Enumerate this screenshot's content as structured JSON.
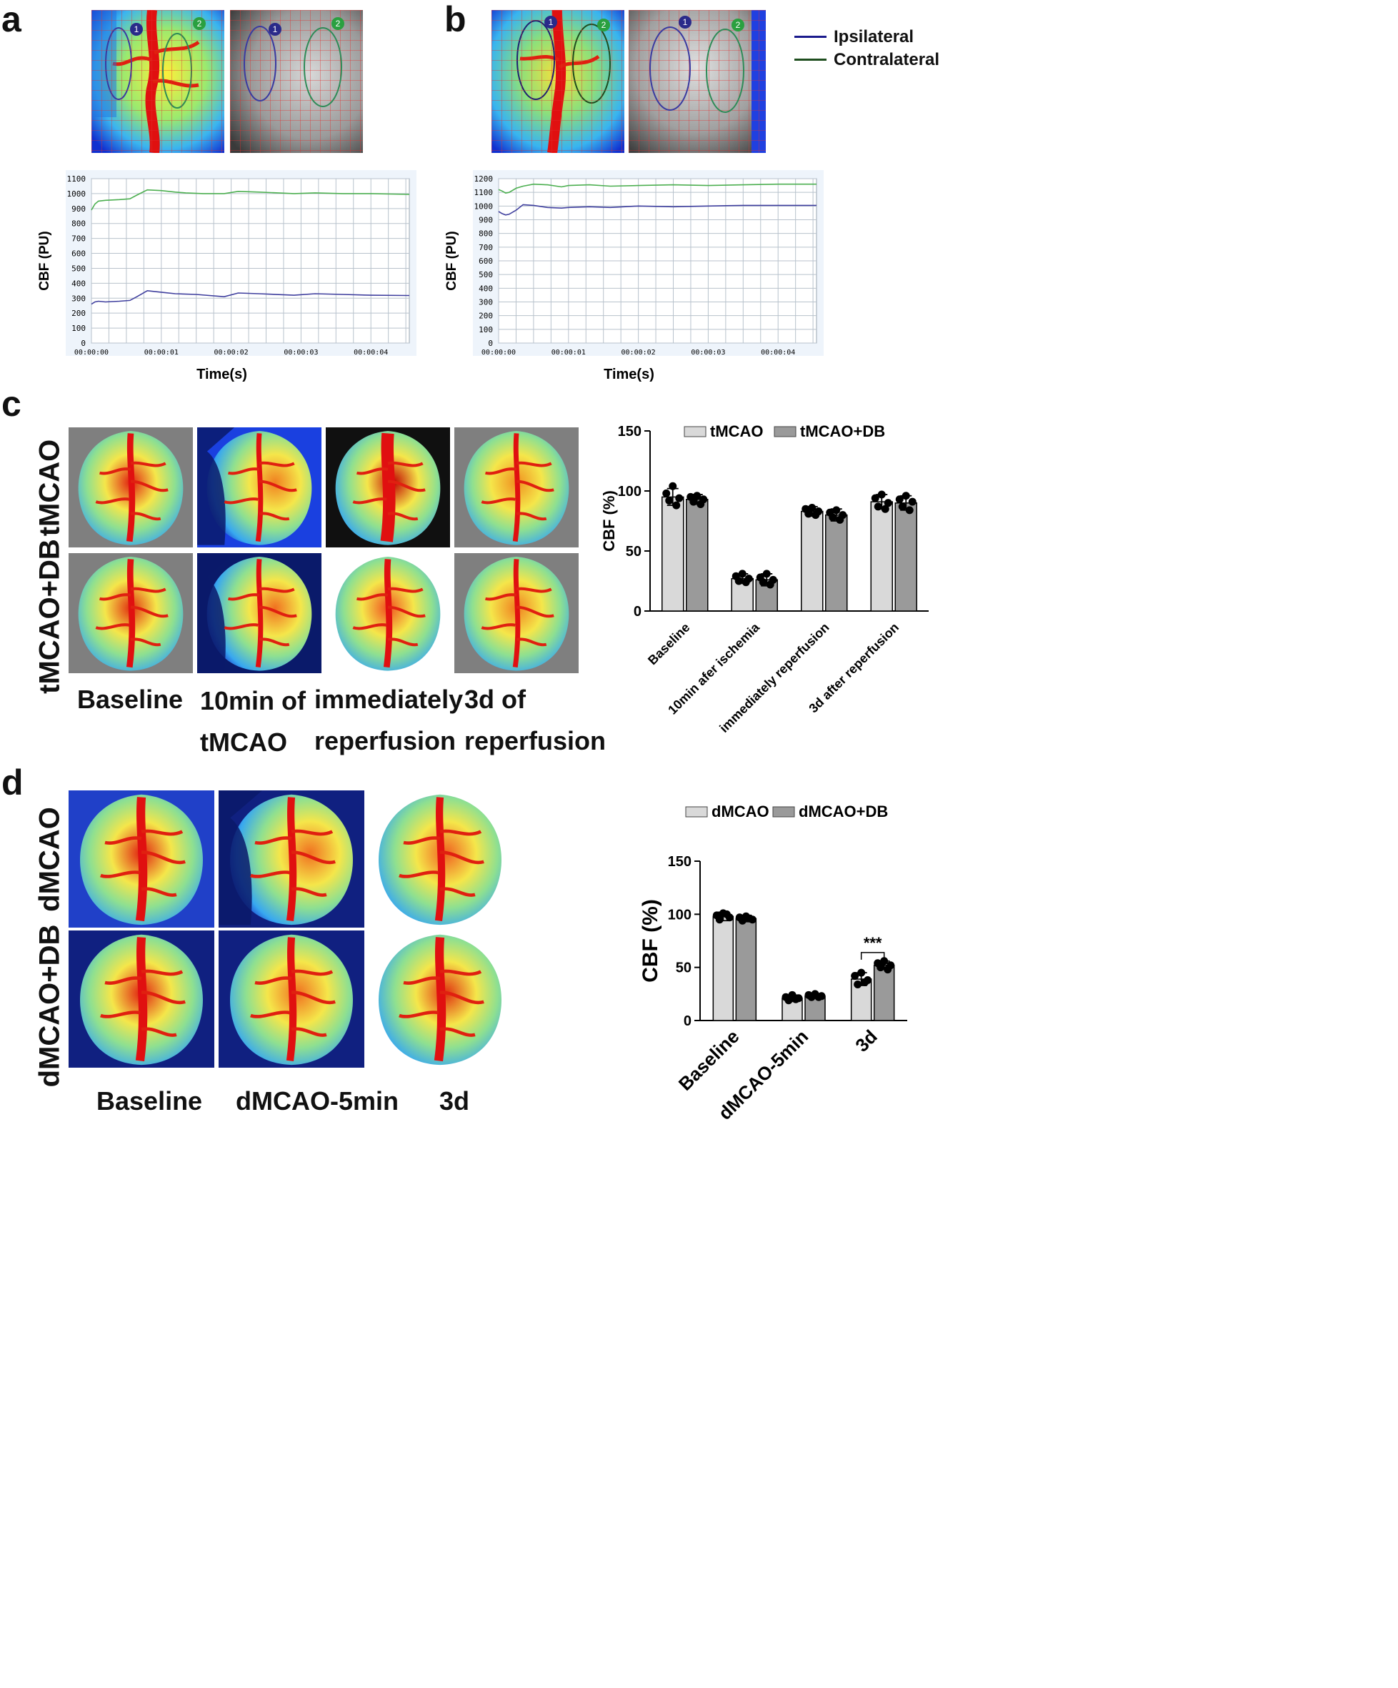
{
  "panels": {
    "a": "a",
    "b": "b",
    "c": "c",
    "d": "d"
  },
  "legend_ab": {
    "items": [
      {
        "label": "Ipsilateral",
        "color": "#1a1a8c"
      },
      {
        "label": "Contralateral",
        "color": "#1e4d1e"
      }
    ]
  },
  "roi_markers": [
    "1",
    "2"
  ],
  "row_labels_c": [
    "tMCAO",
    "tMCAO+DB"
  ],
  "col_labels_c": [
    [
      "Baseline"
    ],
    [
      "10min of",
      "tMCAO"
    ],
    [
      "immediately",
      "reperfusion"
    ],
    [
      "3d of",
      "reperfusion"
    ]
  ],
  "row_labels_d": [
    "dMCAO",
    "dMCAO+DB"
  ],
  "col_labels_d": [
    "Baseline",
    "dMCAO-5min",
    "3d"
  ],
  "chart_data": [
    {
      "id": "a",
      "type": "line",
      "title": "",
      "xlabel": "Time(s)",
      "ylabel": "CBF (PU)",
      "xlim": [
        0,
        4.55
      ],
      "ylim": [
        0,
        1100
      ],
      "y_ticks": [
        0,
        100,
        200,
        300,
        400,
        500,
        600,
        700,
        800,
        900,
        1000,
        1100
      ],
      "x_ticks": [
        0,
        1,
        2,
        3,
        4
      ],
      "x_tick_labels": [
        "00:00:00",
        "00:00:01",
        "00:00:02",
        "00:00:03",
        "00:00:04"
      ],
      "grid": true,
      "series": [
        {
          "color": "#4caf50",
          "x": [
            0,
            0.05,
            0.1,
            0.2,
            0.4,
            0.55,
            0.65,
            0.8,
            1.0,
            1.2,
            1.35,
            1.6,
            1.9,
            2.1,
            2.4,
            2.9,
            3.2,
            3.6,
            4.0,
            4.55
          ],
          "y": [
            890,
            930,
            950,
            955,
            960,
            965,
            990,
            1025,
            1020,
            1010,
            1005,
            1000,
            1000,
            1015,
            1010,
            1000,
            1005,
            1000,
            1000,
            995
          ]
        },
        {
          "color": "#3f3f9e",
          "x": [
            0,
            0.05,
            0.1,
            0.2,
            0.4,
            0.55,
            0.65,
            0.8,
            1.0,
            1.2,
            1.5,
            1.9,
            2.1,
            2.4,
            2.9,
            3.2,
            3.6,
            4.0,
            4.55
          ],
          "y": [
            260,
            275,
            280,
            275,
            280,
            285,
            310,
            350,
            340,
            330,
            325,
            310,
            335,
            330,
            320,
            330,
            325,
            320,
            318
          ]
        }
      ]
    },
    {
      "id": "b",
      "type": "line",
      "title": "",
      "xlabel": "Time(s)",
      "ylabel": "CBF (PU)",
      "xlim": [
        0,
        4.55
      ],
      "ylim": [
        0,
        1200
      ],
      "y_ticks": [
        0,
        100,
        200,
        300,
        400,
        500,
        600,
        700,
        800,
        900,
        1000,
        1100,
        1200
      ],
      "x_ticks": [
        0,
        1,
        2,
        3,
        4
      ],
      "x_tick_labels": [
        "00:00:00",
        "00:00:01",
        "00:00:02",
        "00:00:03",
        "00:00:04"
      ],
      "grid": true,
      "series": [
        {
          "color": "#4caf50",
          "x": [
            0,
            0.05,
            0.1,
            0.15,
            0.25,
            0.35,
            0.5,
            0.7,
            0.9,
            1.0,
            1.3,
            1.6,
            2.0,
            2.5,
            3.0,
            3.5,
            4.0,
            4.55
          ],
          "y": [
            1120,
            1110,
            1095,
            1100,
            1130,
            1145,
            1160,
            1155,
            1140,
            1150,
            1155,
            1145,
            1150,
            1155,
            1150,
            1155,
            1160,
            1160
          ]
        },
        {
          "color": "#3f3f9e",
          "x": [
            0,
            0.05,
            0.1,
            0.15,
            0.25,
            0.35,
            0.5,
            0.7,
            0.9,
            1.0,
            1.3,
            1.6,
            2.0,
            2.5,
            3.0,
            3.5,
            4.0,
            4.55
          ],
          "y": [
            960,
            945,
            935,
            940,
            970,
            1010,
            1005,
            990,
            985,
            990,
            995,
            990,
            1000,
            995,
            1000,
            1005,
            1005,
            1005
          ]
        }
      ]
    },
    {
      "id": "c",
      "type": "bar",
      "title": "",
      "ylabel": "CBF (%)",
      "ylim": [
        0,
        150
      ],
      "y_ticks": [
        0,
        50,
        100,
        150
      ],
      "categories": [
        "Baseline",
        "10min afer ischemia",
        "immediately reperfusion",
        "3d after reperfusion"
      ],
      "series": [
        {
          "name": "tMCAO",
          "color": "#d9d9d9",
          "values": [
            95,
            27,
            83,
            91
          ],
          "errors": [
            7,
            4,
            4,
            6
          ],
          "points": [
            [
              104,
              98,
              94,
              92,
              88
            ],
            [
              31,
              29,
              27,
              25,
              24
            ],
            [
              86,
              85,
              83,
              81,
              80
            ],
            [
              97,
              94,
              90,
              87,
              85
            ]
          ]
        },
        {
          "name": "tMCAO+DB",
          "color": "#9a9a9a",
          "values": [
            93,
            26,
            80,
            90
          ],
          "errors": [
            4,
            5,
            5,
            6
          ],
          "points": [
            [
              96,
              95,
              93,
              91,
              89
            ],
            [
              31,
              28,
              26,
              24,
              22
            ],
            [
              84,
              82,
              80,
              78,
              76
            ],
            [
              96,
              93,
              91,
              87,
              84
            ]
          ]
        }
      ]
    },
    {
      "id": "d",
      "type": "bar",
      "title": "",
      "ylabel": "CBF (%)",
      "ylim": [
        0,
        150
      ],
      "y_ticks": [
        0,
        50,
        100,
        150
      ],
      "categories": [
        "Baseline",
        "dMCAO-5min",
        "3d"
      ],
      "annotations": [
        {
          "text": "***",
          "between": [
            2,
            0,
            1
          ]
        }
      ],
      "series": [
        {
          "name": "dMCAO",
          "color": "#d9d9d9",
          "values": [
            98,
            21,
            39
          ],
          "errors": [
            4,
            3,
            6
          ],
          "points": [
            [
              101,
              99,
              97,
              95,
              100
            ],
            [
              24,
              22,
              21,
              19,
              20
            ],
            [
              45,
              42,
              38,
              34,
              36
            ]
          ]
        },
        {
          "name": "dMCAO+DB",
          "color": "#9a9a9a",
          "values": [
            96,
            23,
            52
          ],
          "errors": [
            3,
            2,
            4
          ],
          "points": [
            [
              98,
              97,
              95,
              94,
              96
            ],
            [
              25,
              24,
              23,
              22,
              22
            ],
            [
              56,
              54,
              52,
              50,
              48
            ]
          ]
        }
      ]
    }
  ]
}
